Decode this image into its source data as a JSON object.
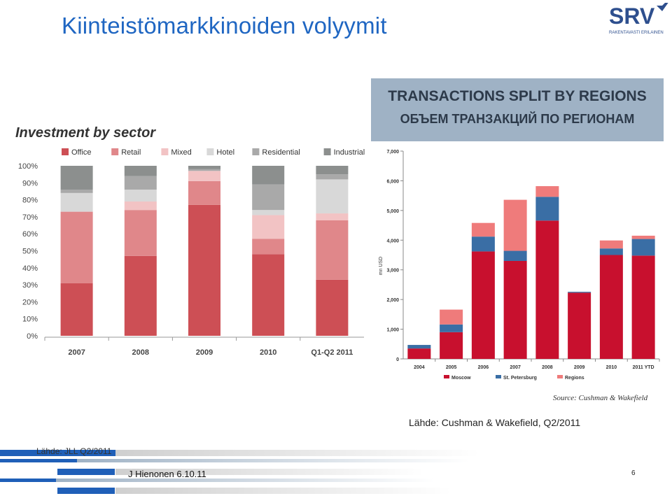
{
  "slide": {
    "title": "Kiinteistömarkkinoiden volyymit",
    "logo_text": "SRV",
    "logo_tagline": "RAKENTAVASTI ERILAINEN",
    "source_right": "Lähde: Cushman & Wakefield, Q2/2011",
    "source_left": "Lähde: JLL Q2/2011",
    "author": "J Hienonen 6.10.11",
    "page_number": "6"
  },
  "colors": {
    "title": "#1f66c2",
    "logo": "#2e4f8e",
    "office": "#cd4f55",
    "retail": "#e0878a",
    "mixed": "#f2c3c4",
    "hotel": "#d8d8d8",
    "residential": "#a9a9a9",
    "industrial": "#8c8f8e",
    "moscow": "#c8102e",
    "st_petersburg": "#3a6ea5",
    "regions": "#ef7b7b"
  },
  "chart_data": [
    {
      "type": "bar",
      "stacked": true,
      "percent": true,
      "title": "Investment by sector",
      "categories": [
        "2007",
        "2008",
        "2009",
        "2010",
        "Q1-Q2 2011"
      ],
      "series": [
        {
          "name": "Office",
          "values": [
            31,
            47,
            77,
            48,
            33
          ]
        },
        {
          "name": "Retail",
          "values": [
            42,
            27,
            14,
            9,
            35
          ]
        },
        {
          "name": "Mixed",
          "values": [
            0,
            5,
            6,
            14,
            4
          ]
        },
        {
          "name": "Hotel",
          "values": [
            11,
            7,
            0,
            3,
            20
          ]
        },
        {
          "name": "Residential",
          "values": [
            2,
            8,
            1,
            15,
            3
          ]
        },
        {
          "name": "Industrial",
          "values": [
            14,
            6,
            2,
            11,
            5
          ]
        }
      ],
      "yticks": [
        "0%",
        "10%",
        "20%",
        "30%",
        "40%",
        "50%",
        "60%",
        "70%",
        "80%",
        "90%",
        "100%"
      ],
      "ylim": [
        0,
        100
      ],
      "legend_position": "top"
    },
    {
      "type": "bar",
      "stacked": true,
      "title": "TRANSACTIONS SPLIT BY REGIONS",
      "subtitle": "ОБЪЕМ ТРАНЗАКЦИЙ ПО РЕГИОНАМ",
      "ylabel": "mn USD",
      "categories": [
        "2004",
        "2005",
        "2006",
        "2007",
        "2008",
        "2009",
        "2010",
        "2011 YTD"
      ],
      "series": [
        {
          "name": "Moscow",
          "values": [
            350,
            900,
            3620,
            3300,
            4660,
            2230,
            3500,
            3480
          ]
        },
        {
          "name": "St. Petersburg",
          "values": [
            120,
            260,
            500,
            340,
            800,
            30,
            220,
            560
          ]
        },
        {
          "name": "Regions",
          "values": [
            0,
            500,
            460,
            1720,
            360,
            0,
            270,
            110
          ]
        }
      ],
      "yticks": [
        "0",
        "1,000",
        "2,000",
        "3,000",
        "4,000",
        "5,000",
        "6,000",
        "7,000"
      ],
      "ylim": [
        0,
        7000
      ],
      "source": "Source: Cushman & Wakefield",
      "legend_position": "bottom"
    }
  ]
}
